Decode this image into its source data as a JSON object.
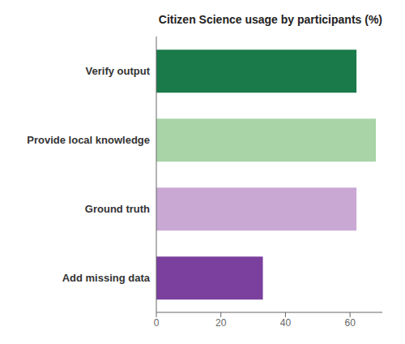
{
  "chart_data": {
    "type": "bar",
    "orientation": "horizontal",
    "title": "Citizen Science usage by participants (%)",
    "categories": [
      "Add missing data",
      "Ground truth",
      "Provide local knowledge",
      "Verify output"
    ],
    "values": [
      33,
      62,
      68,
      62
    ],
    "colors": [
      "#7B3F9E",
      "#C9A8D4",
      "#A8D4A8",
      "#1A7A4A"
    ],
    "xlim": [
      0,
      70
    ],
    "xticks": [
      0,
      20,
      40,
      60
    ],
    "grid": false
  }
}
